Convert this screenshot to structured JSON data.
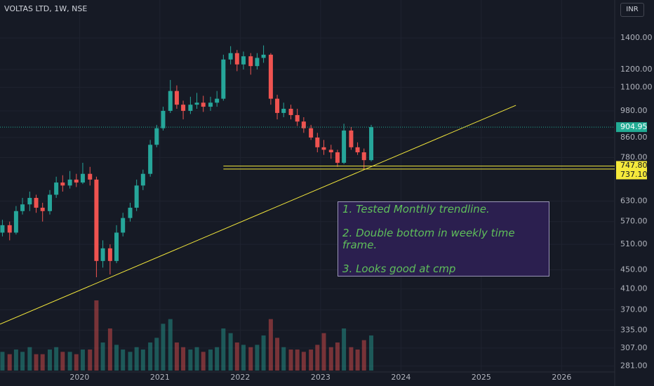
{
  "header": {
    "symbol": "VOLTAS LTD, 1W, NSE",
    "currency": "INR"
  },
  "chart_data": {
    "type": "candlestick",
    "log_scale": true,
    "grid": true,
    "colors": {
      "up": "#26a69a",
      "down": "#ef5350"
    },
    "x": [
      2019.04,
      2019.13,
      2019.21,
      2019.29,
      2019.38,
      2019.46,
      2019.54,
      2019.63,
      2019.71,
      2019.79,
      2019.88,
      2019.96,
      2020.04,
      2020.13,
      2020.21,
      2020.29,
      2020.38,
      2020.46,
      2020.54,
      2020.63,
      2020.71,
      2020.79,
      2020.88,
      2020.96,
      2021.04,
      2021.13,
      2021.21,
      2021.29,
      2021.38,
      2021.46,
      2021.54,
      2021.63,
      2021.71,
      2021.79,
      2021.88,
      2021.96,
      2022.04,
      2022.13,
      2022.21,
      2022.29,
      2022.38,
      2022.46,
      2022.54,
      2022.63,
      2022.71,
      2022.79,
      2022.88,
      2022.96,
      2023.04,
      2023.13,
      2023.21,
      2023.29,
      2023.38,
      2023.46,
      2023.54,
      2023.63
    ],
    "open": [
      540,
      560,
      540,
      600,
      620,
      640,
      610,
      600,
      650,
      690,
      680,
      700,
      690,
      720,
      700,
      470,
      500,
      470,
      540,
      580,
      610,
      680,
      720,
      830,
      900,
      980,
      1080,
      1010,
      980,
      1010,
      1020,
      1000,
      1020,
      1040,
      1260,
      1300,
      1230,
      1280,
      1220,
      1270,
      1290,
      1040,
      970,
      990,
      960,
      930,
      900,
      860,
      820,
      810,
      800,
      760,
      890,
      820,
      800,
      770
    ],
    "high": [
      575,
      570,
      615,
      640,
      660,
      650,
      625,
      665,
      710,
      715,
      730,
      720,
      760,
      745,
      710,
      520,
      510,
      560,
      595,
      625,
      700,
      735,
      850,
      915,
      1000,
      1140,
      1110,
      1030,
      1050,
      1070,
      1055,
      1050,
      1080,
      1290,
      1345,
      1320,
      1310,
      1300,
      1300,
      1350,
      1300,
      1060,
      1020,
      1010,
      990,
      950,
      915,
      880,
      850,
      830,
      810,
      920,
      905,
      840,
      815,
      915
    ],
    "low": [
      530,
      520,
      535,
      590,
      600,
      595,
      570,
      590,
      640,
      660,
      670,
      675,
      685,
      680,
      434,
      455,
      440,
      465,
      530,
      570,
      600,
      665,
      710,
      820,
      890,
      970,
      990,
      940,
      965,
      990,
      975,
      980,
      1000,
      1030,
      1230,
      1190,
      1200,
      1170,
      1200,
      1240,
      1010,
      940,
      950,
      940,
      910,
      880,
      850,
      800,
      790,
      775,
      745,
      755,
      810,
      790,
      737,
      765
    ],
    "close": [
      560,
      540,
      600,
      620,
      640,
      610,
      600,
      650,
      690,
      680,
      700,
      690,
      720,
      700,
      470,
      500,
      470,
      540,
      580,
      610,
      680,
      720,
      830,
      900,
      980,
      1080,
      1010,
      980,
      1010,
      1020,
      1000,
      1020,
      1040,
      1260,
      1300,
      1230,
      1280,
      1220,
      1270,
      1290,
      1040,
      970,
      990,
      960,
      930,
      900,
      860,
      820,
      810,
      800,
      760,
      890,
      820,
      800,
      770,
      904.95
    ],
    "volume": [
      8,
      7,
      9,
      8,
      10,
      7,
      7,
      9,
      10,
      8,
      8,
      7,
      9,
      9,
      30,
      12,
      18,
      11,
      9,
      8,
      10,
      9,
      12,
      14,
      20,
      22,
      12,
      10,
      9,
      10,
      8,
      9,
      10,
      18,
      16,
      12,
      11,
      10,
      11,
      15,
      22,
      14,
      10,
      9,
      9,
      8,
      9,
      11,
      16,
      10,
      12,
      18,
      10,
      9,
      13,
      15
    ],
    "xlim": [
      2019.01,
      2026.66
    ],
    "xticks": [
      2020,
      2021,
      2022,
      2023,
      2024,
      2025,
      2026
    ],
    "ylim": [
      273,
      1686
    ],
    "yticks": [
      {
        "value": 1400,
        "label": "1400.00"
      },
      {
        "value": 1200,
        "label": "1200.00"
      },
      {
        "value": 1100,
        "label": "1100.00"
      },
      {
        "value": 980,
        "label": "980.00"
      },
      {
        "value": 860,
        "label": "860.00"
      },
      {
        "value": 780,
        "label": "780.00"
      },
      {
        "value": 630,
        "label": "630.00"
      },
      {
        "value": 570,
        "label": "570.00"
      },
      {
        "value": 510,
        "label": "510.00"
      },
      {
        "value": 450,
        "label": "450.00"
      },
      {
        "value": 410,
        "label": "410.00"
      },
      {
        "value": 370,
        "label": "370.00"
      },
      {
        "value": 335,
        "label": "335.00"
      },
      {
        "value": 307,
        "label": "307.00"
      },
      {
        "value": 281,
        "label": "281.00"
      }
    ],
    "last_price": {
      "value": 904.95,
      "color": "#22ab94"
    },
    "level_color": "#f5e93b",
    "level_start": 2021.79,
    "levels": [
      {
        "value": 747.8,
        "label": "747.80"
      },
      {
        "value": 737.1,
        "label": "737.10"
      }
    ],
    "trendline": {
      "x": [
        2019.01,
        2025.43
      ],
      "y": [
        345,
        1007
      ]
    },
    "annotation": [
      "1. Tested Monthly trendline.",
      "2. Double bottom in weekly time frame.",
      "3. Looks good at cmp"
    ]
  }
}
